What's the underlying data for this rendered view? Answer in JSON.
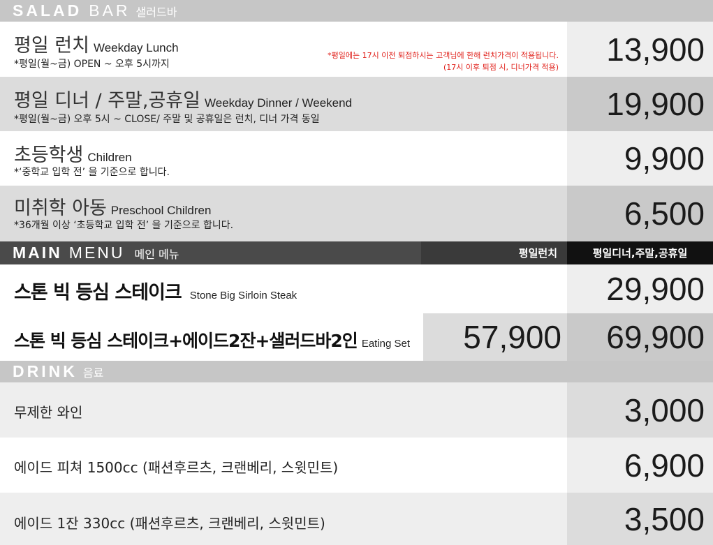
{
  "salad": {
    "head_big1": "SALAD",
    "head_big2": "BAR",
    "head_kr": "샐러드바",
    "rows": [
      {
        "kr": "평일 런치",
        "en": "Weekday Lunch",
        "sub": "*평일(월~금) OPEN ~ 오후 5시까지",
        "price": "13,900",
        "note1": "*평일에는 17시 이전 퇴점하시는 고객님에 한해 런치가격이 적용됩니다.",
        "note2": "(17시 이후 퇴점 시, 디너가격 적용)"
      },
      {
        "kr": "평일 디너 / 주말,공휴일",
        "en": "Weekday Dinner / Weekend",
        "sub": "*평일(월~금) 오후 5시 ~ CLOSE/ 주말 및 공휴일은 런치, 디너 가격 동일",
        "price": "19,900"
      },
      {
        "kr": "초등학생",
        "en": "Children",
        "sub": "*‘중학교 입학 전’ 을 기준으로 합니다.",
        "price": "9,900"
      },
      {
        "kr": "미취학 아동",
        "en": "Preschool Children",
        "sub": "*36개월 이상 ‘초등학교 입학 전’ 을 기준으로 합니다.",
        "price": "6,500"
      }
    ]
  },
  "main": {
    "head_big1": "MAIN",
    "head_big2": "MENU",
    "head_kr": "메인 메뉴",
    "col_lunch": "평일런치",
    "col_dinner": "평일디너,주말,공휴일",
    "items": [
      {
        "kr": "스톤 빅 등심 스테이크",
        "en": "Stone Big Sirloin Steak",
        "price_dinner": "29,900"
      },
      {
        "kr": "스톤 빅 등심 스테이크+에이드2잔+샐러드바2인",
        "en": "Eating Set",
        "price_lunch": "57,900",
        "price_dinner": "69,900"
      }
    ]
  },
  "drink": {
    "head_big1": "DRINK",
    "head_kr": "음료",
    "items": [
      {
        "name": "무제한 와인",
        "price": "3,000"
      },
      {
        "name": "에이드 피쳐 1500cc (패션후르츠, 크랜베리, 스윗민트)",
        "price": "6,900"
      },
      {
        "name": "에이드 1잔 330cc (패션후르츠, 크랜베리, 스윗민트)",
        "price": "3,500"
      }
    ]
  }
}
